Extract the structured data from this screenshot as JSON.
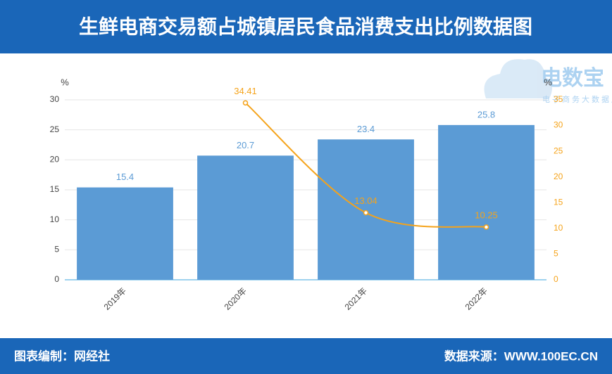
{
  "chart_data": {
    "type": "bar_line",
    "title": "生鲜电商交易额占城镇居民食品消费支出比例数据图",
    "ylabel": "%",
    "y2label": "%",
    "categories": [
      "2019年",
      "2020年",
      "2021年",
      "2022年"
    ],
    "series": [
      {
        "type": "bar",
        "color": "#5b9bd5",
        "values": [
          15.4,
          20.7,
          23.4,
          25.8
        ]
      },
      {
        "type": "line",
        "color": "#f5a31a",
        "axis": "y2",
        "values": [
          null,
          34.41,
          13.04,
          10.25
        ]
      }
    ],
    "ylim": [
      0,
      30
    ],
    "yticks": [
      0,
      5,
      10,
      15,
      20,
      25,
      30
    ],
    "y2lim": [
      0,
      35
    ],
    "y2ticks": [
      0,
      5,
      10,
      15,
      20,
      25,
      30,
      35
    ],
    "grid": true,
    "watermark": [
      "电数宝",
      "电子商务大数据库"
    ],
    "footer_left": "图表编制：网经社",
    "footer_right": "数据来源：WWW.100EC.CN"
  }
}
